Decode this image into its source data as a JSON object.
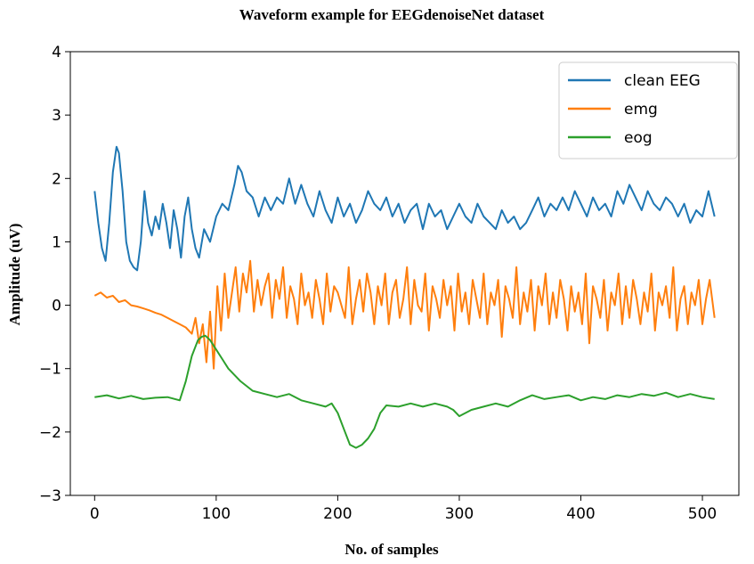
{
  "chart_data": {
    "type": "line",
    "title": "Waveform example for EEGdenoiseNet dataset",
    "xlabel": "No. of samples",
    "ylabel": "Amplitude (uV)",
    "xlim": [
      -20,
      530
    ],
    "ylim": [
      -3,
      4
    ],
    "xticks": [
      0,
      100,
      200,
      300,
      400,
      500
    ],
    "yticks": [
      -3,
      -2,
      -1,
      0,
      1,
      2,
      3,
      4
    ],
    "legend_position": "top-right",
    "grid": false,
    "series": [
      {
        "name": "clean EEG",
        "color": "#1f77b4",
        "x": [
          0,
          3,
          6,
          9,
          12,
          15,
          18,
          20,
          23,
          26,
          29,
          32,
          35,
          38,
          41,
          44,
          47,
          50,
          53,
          56,
          59,
          62,
          65,
          68,
          71,
          74,
          77,
          80,
          83,
          86,
          90,
          95,
          100,
          105,
          110,
          115,
          118,
          121,
          125,
          130,
          135,
          140,
          145,
          150,
          155,
          160,
          165,
          170,
          175,
          180,
          185,
          190,
          195,
          200,
          205,
          210,
          215,
          220,
          225,
          230,
          235,
          240,
          245,
          250,
          255,
          260,
          265,
          270,
          275,
          280,
          285,
          290,
          295,
          300,
          305,
          310,
          315,
          320,
          325,
          330,
          335,
          340,
          345,
          350,
          355,
          360,
          365,
          370,
          375,
          380,
          385,
          390,
          395,
          400,
          405,
          410,
          415,
          420,
          425,
          430,
          435,
          440,
          445,
          450,
          455,
          460,
          465,
          470,
          475,
          480,
          485,
          490,
          495,
          500,
          505,
          510
        ],
        "values": [
          1.8,
          1.3,
          0.9,
          0.7,
          1.3,
          2.1,
          2.5,
          2.4,
          1.8,
          1.0,
          0.7,
          0.6,
          0.55,
          1.0,
          1.8,
          1.3,
          1.1,
          1.4,
          1.2,
          1.6,
          1.3,
          0.9,
          1.5,
          1.2,
          0.75,
          1.4,
          1.7,
          1.2,
          0.9,
          0.75,
          1.2,
          1.0,
          1.4,
          1.6,
          1.5,
          1.9,
          2.2,
          2.1,
          1.8,
          1.7,
          1.4,
          1.7,
          1.5,
          1.7,
          1.6,
          2.0,
          1.6,
          1.9,
          1.6,
          1.4,
          1.8,
          1.5,
          1.3,
          1.7,
          1.4,
          1.6,
          1.3,
          1.5,
          1.8,
          1.6,
          1.5,
          1.7,
          1.4,
          1.6,
          1.3,
          1.5,
          1.6,
          1.2,
          1.6,
          1.4,
          1.5,
          1.2,
          1.4,
          1.6,
          1.4,
          1.3,
          1.6,
          1.4,
          1.3,
          1.2,
          1.5,
          1.3,
          1.4,
          1.2,
          1.3,
          1.5,
          1.7,
          1.4,
          1.6,
          1.5,
          1.7,
          1.5,
          1.8,
          1.6,
          1.4,
          1.7,
          1.5,
          1.6,
          1.4,
          1.8,
          1.6,
          1.9,
          1.7,
          1.5,
          1.8,
          1.6,
          1.5,
          1.7,
          1.6,
          1.4,
          1.6,
          1.3,
          1.5,
          1.4,
          1.8,
          1.4
        ]
      },
      {
        "name": "emg",
        "color": "#ff7f0e",
        "x": [
          0,
          5,
          10,
          15,
          20,
          25,
          30,
          35,
          40,
          45,
          50,
          55,
          60,
          65,
          70,
          75,
          80,
          83,
          86,
          89,
          92,
          95,
          98,
          101,
          104,
          107,
          110,
          113,
          116,
          119,
          122,
          125,
          128,
          131,
          134,
          137,
          140,
          143,
          146,
          149,
          152,
          155,
          158,
          161,
          164,
          167,
          170,
          173,
          176,
          179,
          182,
          185,
          188,
          191,
          194,
          197,
          200,
          203,
          206,
          209,
          212,
          215,
          218,
          221,
          224,
          227,
          230,
          233,
          236,
          239,
          242,
          245,
          248,
          251,
          254,
          257,
          260,
          263,
          266,
          269,
          272,
          275,
          278,
          281,
          284,
          287,
          290,
          293,
          296,
          299,
          302,
          305,
          308,
          311,
          314,
          317,
          320,
          323,
          326,
          329,
          332,
          335,
          338,
          341,
          344,
          347,
          350,
          353,
          356,
          359,
          362,
          365,
          368,
          371,
          374,
          377,
          380,
          383,
          386,
          389,
          392,
          395,
          398,
          401,
          404,
          407,
          410,
          413,
          416,
          419,
          422,
          425,
          428,
          431,
          434,
          437,
          440,
          443,
          446,
          449,
          452,
          455,
          458,
          461,
          464,
          467,
          470,
          473,
          476,
          479,
          482,
          485,
          488,
          491,
          494,
          497,
          500,
          503,
          506,
          510
        ],
        "values": [
          0.15,
          0.2,
          0.12,
          0.15,
          0.05,
          0.08,
          0.0,
          -0.02,
          -0.05,
          -0.08,
          -0.12,
          -0.15,
          -0.2,
          -0.25,
          -0.3,
          -0.35,
          -0.45,
          -0.2,
          -0.6,
          -0.3,
          -0.9,
          -0.1,
          -1.0,
          0.3,
          -0.4,
          0.5,
          -0.2,
          0.2,
          0.6,
          -0.1,
          0.5,
          0.2,
          0.7,
          -0.1,
          0.4,
          0.0,
          0.3,
          0.5,
          -0.2,
          0.4,
          0.1,
          0.6,
          -0.2,
          0.3,
          0.1,
          -0.3,
          0.5,
          0.0,
          0.2,
          -0.2,
          0.4,
          0.1,
          -0.3,
          0.5,
          -0.1,
          0.3,
          0.2,
          0.0,
          -0.2,
          0.6,
          -0.3,
          0.1,
          0.4,
          -0.1,
          0.5,
          0.2,
          -0.3,
          0.3,
          0.0,
          0.5,
          -0.3,
          0.2,
          0.4,
          -0.2,
          0.1,
          0.6,
          -0.3,
          0.4,
          0.0,
          -0.1,
          0.5,
          -0.4,
          0.3,
          0.1,
          -0.2,
          0.4,
          0.0,
          0.3,
          -0.4,
          0.5,
          -0.1,
          0.2,
          -0.3,
          0.4,
          0.1,
          -0.2,
          0.5,
          -0.3,
          0.2,
          0.0,
          0.4,
          -0.5,
          0.3,
          0.1,
          -0.2,
          0.6,
          -0.3,
          0.2,
          -0.1,
          0.4,
          -0.4,
          0.3,
          0.0,
          0.5,
          -0.3,
          0.2,
          -0.2,
          0.4,
          0.1,
          -0.4,
          0.3,
          -0.1,
          0.2,
          -0.3,
          0.5,
          -0.6,
          0.3,
          0.1,
          -0.2,
          0.4,
          -0.4,
          0.2,
          0.0,
          0.5,
          -0.3,
          0.3,
          -0.2,
          0.4,
          0.1,
          -0.3,
          0.2,
          -0.1,
          0.5,
          -0.4,
          0.2,
          0.0,
          0.3,
          -0.2,
          0.6,
          -0.4,
          0.1,
          0.3,
          -0.3,
          0.2,
          0.0,
          0.4,
          -0.3,
          0.1,
          0.4,
          -0.2
        ]
      },
      {
        "name": "eog",
        "color": "#2ca02c",
        "x": [
          0,
          10,
          20,
          30,
          40,
          50,
          60,
          70,
          75,
          80,
          85,
          88,
          91,
          95,
          100,
          105,
          110,
          120,
          130,
          140,
          150,
          160,
          170,
          180,
          190,
          195,
          200,
          205,
          210,
          215,
          220,
          225,
          230,
          235,
          240,
          250,
          260,
          270,
          280,
          290,
          295,
          300,
          310,
          320,
          330,
          340,
          350,
          360,
          370,
          380,
          390,
          400,
          410,
          420,
          430,
          440,
          450,
          460,
          470,
          480,
          490,
          500,
          510
        ],
        "values": [
          -1.45,
          -1.42,
          -1.47,
          -1.43,
          -1.48,
          -1.46,
          -1.45,
          -1.5,
          -1.2,
          -0.8,
          -0.55,
          -0.5,
          -0.48,
          -0.55,
          -0.7,
          -0.85,
          -1.0,
          -1.2,
          -1.35,
          -1.4,
          -1.45,
          -1.4,
          -1.5,
          -1.55,
          -1.6,
          -1.55,
          -1.7,
          -1.95,
          -2.2,
          -2.25,
          -2.2,
          -2.1,
          -1.95,
          -1.7,
          -1.58,
          -1.6,
          -1.55,
          -1.6,
          -1.55,
          -1.6,
          -1.65,
          -1.75,
          -1.65,
          -1.6,
          -1.55,
          -1.6,
          -1.5,
          -1.42,
          -1.48,
          -1.45,
          -1.42,
          -1.5,
          -1.45,
          -1.48,
          -1.42,
          -1.45,
          -1.4,
          -1.43,
          -1.38,
          -1.45,
          -1.4,
          -1.45,
          -1.48
        ]
      }
    ]
  }
}
